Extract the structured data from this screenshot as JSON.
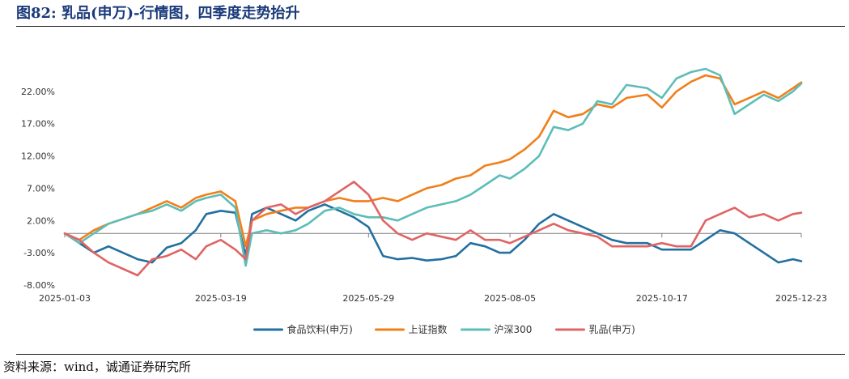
{
  "figure_title": "图82:   乳品(申万)-行情图，四季度走势抬升",
  "source": "资料来源：wind，诚通证券研究所",
  "colors": {
    "title": "#1a3a7a",
    "axis": "#7f7f7f",
    "tick_text": "#333333"
  },
  "chart_data": {
    "type": "line",
    "title": "",
    "xlabel": "",
    "ylabel": "",
    "x_start": "2025-01-03",
    "x_end": "2025-12-23",
    "x_ticks": [
      "2025-01-03",
      "2025-03-19",
      "2025-05-29",
      "2025-08-05",
      "2025-10-17",
      "2025-12-23"
    ],
    "y_ticks": [
      "22.00%",
      "17.00%",
      "12.00%",
      "7.00%",
      "2.00%",
      "-3.00%",
      "-8.00%"
    ],
    "y_unit": "%",
    "ylim": [
      -8,
      26
    ],
    "grid": false,
    "legend_position": "bottom",
    "series": [
      {
        "name": "食品饮料(申万)",
        "color": "#2270a0",
        "points": [
          [
            "2025-01-03",
            0
          ],
          [
            "2025-01-10",
            -1.5
          ],
          [
            "2025-01-17",
            -3
          ],
          [
            "2025-01-24",
            -2
          ],
          [
            "2025-02-07",
            -4
          ],
          [
            "2025-02-14",
            -4.5
          ],
          [
            "2025-02-21",
            -2.2
          ],
          [
            "2025-02-28",
            -1.5
          ],
          [
            "2025-03-07",
            0.5
          ],
          [
            "2025-03-12",
            3
          ],
          [
            "2025-03-19",
            3.5
          ],
          [
            "2025-03-26",
            3.2
          ],
          [
            "2025-03-31",
            -3.5
          ],
          [
            "2025-04-03",
            3
          ],
          [
            "2025-04-10",
            4
          ],
          [
            "2025-04-17",
            3
          ],
          [
            "2025-04-24",
            2
          ],
          [
            "2025-04-30",
            3.5
          ],
          [
            "2025-05-08",
            4.5
          ],
          [
            "2025-05-15",
            3.5
          ],
          [
            "2025-05-22",
            2.5
          ],
          [
            "2025-05-29",
            1
          ],
          [
            "2025-06-05",
            -3.5
          ],
          [
            "2025-06-12",
            -4
          ],
          [
            "2025-06-19",
            -3.8
          ],
          [
            "2025-06-26",
            -4.2
          ],
          [
            "2025-07-03",
            -4
          ],
          [
            "2025-07-10",
            -3.5
          ],
          [
            "2025-07-17",
            -1.5
          ],
          [
            "2025-07-24",
            -2
          ],
          [
            "2025-07-31",
            -3
          ],
          [
            "2025-08-05",
            -3
          ],
          [
            "2025-08-12",
            -1
          ],
          [
            "2025-08-19",
            1.5
          ],
          [
            "2025-08-26",
            3
          ],
          [
            "2025-09-02",
            2
          ],
          [
            "2025-09-09",
            1
          ],
          [
            "2025-09-16",
            0
          ],
          [
            "2025-09-23",
            -1
          ],
          [
            "2025-09-30",
            -1.5
          ],
          [
            "2025-10-10",
            -1.5
          ],
          [
            "2025-10-17",
            -2.5
          ],
          [
            "2025-10-24",
            -2.5
          ],
          [
            "2025-10-31",
            -2.5
          ],
          [
            "2025-11-07",
            -1
          ],
          [
            "2025-11-14",
            0.5
          ],
          [
            "2025-11-21",
            0
          ],
          [
            "2025-11-28",
            -1.5
          ],
          [
            "2025-12-05",
            -3
          ],
          [
            "2025-12-12",
            -4.5
          ],
          [
            "2025-12-19",
            -4
          ],
          [
            "2025-12-23",
            -4.3
          ]
        ]
      },
      {
        "name": "上证指数",
        "color": "#f07f1a",
        "points": [
          [
            "2025-01-03",
            0
          ],
          [
            "2025-01-10",
            -1
          ],
          [
            "2025-01-17",
            0.5
          ],
          [
            "2025-01-24",
            1.5
          ],
          [
            "2025-02-07",
            3
          ],
          [
            "2025-02-14",
            4
          ],
          [
            "2025-02-21",
            5
          ],
          [
            "2025-02-28",
            4
          ],
          [
            "2025-03-07",
            5.5
          ],
          [
            "2025-03-12",
            6
          ],
          [
            "2025-03-19",
            6.5
          ],
          [
            "2025-03-26",
            5
          ],
          [
            "2025-03-31",
            -2
          ],
          [
            "2025-04-03",
            2
          ],
          [
            "2025-04-10",
            3
          ],
          [
            "2025-04-17",
            3.5
          ],
          [
            "2025-04-24",
            4
          ],
          [
            "2025-04-30",
            4
          ],
          [
            "2025-05-08",
            5
          ],
          [
            "2025-05-15",
            5.5
          ],
          [
            "2025-05-22",
            5
          ],
          [
            "2025-05-29",
            5
          ],
          [
            "2025-06-05",
            5.5
          ],
          [
            "2025-06-12",
            5
          ],
          [
            "2025-06-19",
            6
          ],
          [
            "2025-06-26",
            7
          ],
          [
            "2025-07-03",
            7.5
          ],
          [
            "2025-07-10",
            8.5
          ],
          [
            "2025-07-17",
            9
          ],
          [
            "2025-07-24",
            10.5
          ],
          [
            "2025-07-31",
            11
          ],
          [
            "2025-08-05",
            11.5
          ],
          [
            "2025-08-12",
            13
          ],
          [
            "2025-08-19",
            15
          ],
          [
            "2025-08-26",
            19
          ],
          [
            "2025-09-02",
            18
          ],
          [
            "2025-09-09",
            18.5
          ],
          [
            "2025-09-16",
            20
          ],
          [
            "2025-09-23",
            19.5
          ],
          [
            "2025-09-30",
            21
          ],
          [
            "2025-10-10",
            21.5
          ],
          [
            "2025-10-17",
            19.5
          ],
          [
            "2025-10-24",
            22
          ],
          [
            "2025-10-31",
            23.5
          ],
          [
            "2025-11-07",
            24.5
          ],
          [
            "2025-11-14",
            24
          ],
          [
            "2025-11-21",
            20
          ],
          [
            "2025-11-28",
            21
          ],
          [
            "2025-12-05",
            22
          ],
          [
            "2025-12-12",
            21
          ],
          [
            "2025-12-19",
            22.5
          ],
          [
            "2025-12-23",
            23.4
          ]
        ]
      },
      {
        "name": "沪深300",
        "color": "#5dbdb8",
        "points": [
          [
            "2025-01-03",
            0
          ],
          [
            "2025-01-10",
            -1.5
          ],
          [
            "2025-01-17",
            0
          ],
          [
            "2025-01-24",
            1.5
          ],
          [
            "2025-02-07",
            3
          ],
          [
            "2025-02-14",
            3.5
          ],
          [
            "2025-02-21",
            4.5
          ],
          [
            "2025-02-28",
            3.5
          ],
          [
            "2025-03-07",
            5
          ],
          [
            "2025-03-12",
            5.5
          ],
          [
            "2025-03-19",
            6
          ],
          [
            "2025-03-26",
            4
          ],
          [
            "2025-03-31",
            -5
          ],
          [
            "2025-04-03",
            0
          ],
          [
            "2025-04-10",
            0.5
          ],
          [
            "2025-04-17",
            0
          ],
          [
            "2025-04-24",
            0.5
          ],
          [
            "2025-04-30",
            1.5
          ],
          [
            "2025-05-08",
            3.5
          ],
          [
            "2025-05-15",
            4
          ],
          [
            "2025-05-22",
            3
          ],
          [
            "2025-05-29",
            2.5
          ],
          [
            "2025-06-05",
            2.5
          ],
          [
            "2025-06-12",
            2
          ],
          [
            "2025-06-19",
            3
          ],
          [
            "2025-06-26",
            4
          ],
          [
            "2025-07-03",
            4.5
          ],
          [
            "2025-07-10",
            5
          ],
          [
            "2025-07-17",
            6
          ],
          [
            "2025-07-24",
            7.5
          ],
          [
            "2025-07-31",
            9
          ],
          [
            "2025-08-05",
            8.5
          ],
          [
            "2025-08-12",
            10
          ],
          [
            "2025-08-19",
            12
          ],
          [
            "2025-08-26",
            16.5
          ],
          [
            "2025-09-02",
            16
          ],
          [
            "2025-09-09",
            17
          ],
          [
            "2025-09-16",
            20.5
          ],
          [
            "2025-09-23",
            20
          ],
          [
            "2025-09-30",
            23
          ],
          [
            "2025-10-10",
            22.5
          ],
          [
            "2025-10-17",
            21
          ],
          [
            "2025-10-24",
            24
          ],
          [
            "2025-10-31",
            25
          ],
          [
            "2025-11-07",
            25.5
          ],
          [
            "2025-11-14",
            24.5
          ],
          [
            "2025-11-21",
            18.5
          ],
          [
            "2025-11-28",
            20
          ],
          [
            "2025-12-05",
            21.5
          ],
          [
            "2025-12-12",
            20.5
          ],
          [
            "2025-12-19",
            22
          ],
          [
            "2025-12-23",
            23.2
          ]
        ]
      },
      {
        "name": "乳品(申万)",
        "color": "#e06464",
        "points": [
          [
            "2025-01-03",
            0
          ],
          [
            "2025-01-10",
            -1
          ],
          [
            "2025-01-17",
            -3
          ],
          [
            "2025-01-24",
            -4.5
          ],
          [
            "2025-02-07",
            -6.5
          ],
          [
            "2025-02-14",
            -4
          ],
          [
            "2025-02-21",
            -3.5
          ],
          [
            "2025-02-28",
            -2.5
          ],
          [
            "2025-03-07",
            -4
          ],
          [
            "2025-03-12",
            -2
          ],
          [
            "2025-03-19",
            -1
          ],
          [
            "2025-03-26",
            -2.5
          ],
          [
            "2025-03-31",
            -4
          ],
          [
            "2025-04-03",
            2
          ],
          [
            "2025-04-10",
            4
          ],
          [
            "2025-04-17",
            4.5
          ],
          [
            "2025-04-24",
            3
          ],
          [
            "2025-04-30",
            4
          ],
          [
            "2025-05-08",
            5
          ],
          [
            "2025-05-15",
            6.5
          ],
          [
            "2025-05-22",
            8
          ],
          [
            "2025-05-29",
            6
          ],
          [
            "2025-06-05",
            2
          ],
          [
            "2025-06-12",
            0
          ],
          [
            "2025-06-19",
            -1
          ],
          [
            "2025-06-26",
            0
          ],
          [
            "2025-07-03",
            -0.5
          ],
          [
            "2025-07-10",
            -1
          ],
          [
            "2025-07-17",
            0.5
          ],
          [
            "2025-07-24",
            -1
          ],
          [
            "2025-07-31",
            -1
          ],
          [
            "2025-08-05",
            -1.5
          ],
          [
            "2025-08-12",
            -0.5
          ],
          [
            "2025-08-19",
            0.5
          ],
          [
            "2025-08-26",
            1.5
          ],
          [
            "2025-09-02",
            0.5
          ],
          [
            "2025-09-09",
            0
          ],
          [
            "2025-09-16",
            -0.5
          ],
          [
            "2025-09-23",
            -2
          ],
          [
            "2025-09-30",
            -2
          ],
          [
            "2025-10-10",
            -2
          ],
          [
            "2025-10-17",
            -1.5
          ],
          [
            "2025-10-24",
            -2
          ],
          [
            "2025-10-31",
            -2
          ],
          [
            "2025-11-07",
            2
          ],
          [
            "2025-11-14",
            3
          ],
          [
            "2025-11-21",
            4
          ],
          [
            "2025-11-28",
            2.5
          ],
          [
            "2025-12-05",
            3
          ],
          [
            "2025-12-12",
            2
          ],
          [
            "2025-12-19",
            3
          ],
          [
            "2025-12-23",
            3.2
          ]
        ]
      }
    ]
  }
}
